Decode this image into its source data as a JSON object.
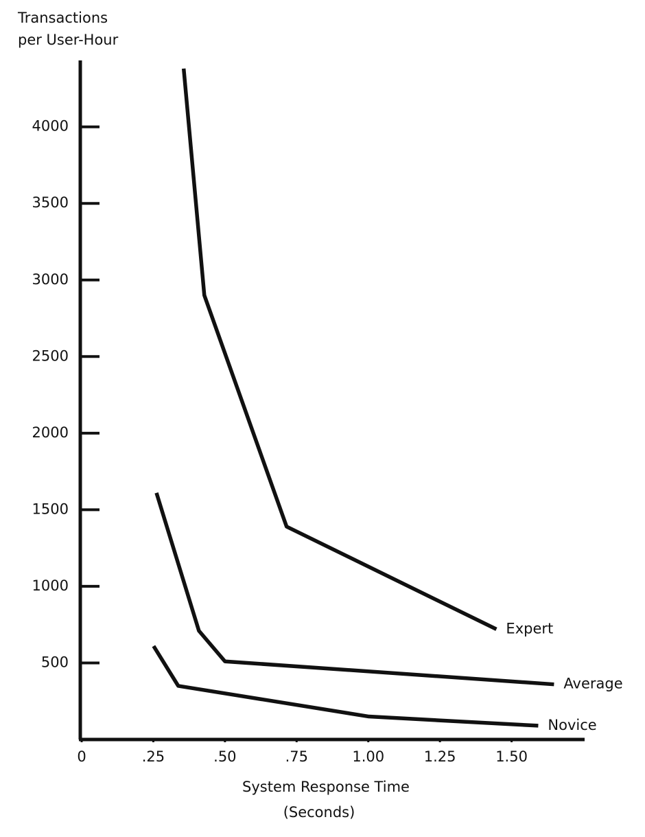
{
  "chart_data": {
    "type": "line",
    "ylabel": [
      "Transactions",
      "per User-Hour"
    ],
    "xlabel": [
      "System Response Time",
      "(Seconds)"
    ],
    "xlim": [
      0,
      1.75
    ],
    "ylim": [
      0,
      4420
    ],
    "xticks": [
      0,
      {
        "value": 0.25,
        "label": ".25"
      },
      {
        "value": 0.5,
        "label": ".50"
      },
      {
        "value": 0.75,
        "label": ".75"
      },
      {
        "value": 1,
        "label": "1.00"
      },
      {
        "value": 1.25,
        "label": "1.25"
      },
      {
        "value": 1.5,
        "label": "1.50"
      }
    ],
    "yticks": [
      500,
      1000,
      1500,
      2000,
      2500,
      3000,
      3500,
      4000
    ],
    "series": [
      {
        "name": "Expert",
        "color": "#111111",
        "x": [
          0.356,
          0.428,
          0.715,
          1.447
        ],
        "values": [
          4380,
          2900,
          1390,
          720
        ]
      },
      {
        "name": "Average",
        "color": "#111111",
        "x": [
          0.261,
          0.409,
          0.5,
          1.648
        ],
        "values": [
          1610,
          710,
          510,
          360
        ]
      },
      {
        "name": "Novice",
        "color": "#111111",
        "x": [
          0.251,
          0.337,
          1.002,
          1.593
        ],
        "values": [
          610,
          350,
          150,
          90
        ]
      }
    ]
  }
}
